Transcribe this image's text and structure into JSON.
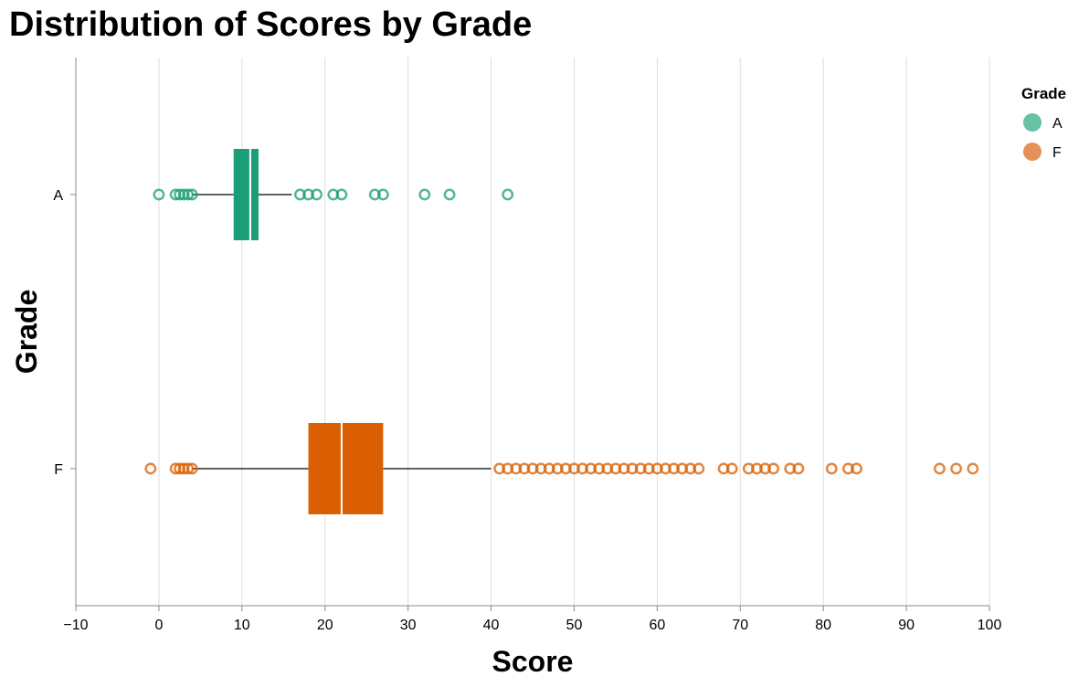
{
  "chart_data": {
    "type": "boxplot",
    "title": "Distribution of Scores by Grade",
    "xlabel": "Score",
    "ylabel": "Grade",
    "xlim": [
      -10,
      100
    ],
    "x_ticks": [
      -10,
      0,
      10,
      20,
      30,
      40,
      50,
      60,
      70,
      80,
      90,
      100
    ],
    "categories": [
      "A",
      "F"
    ],
    "grid": true,
    "legend": {
      "title": "Grade",
      "placement": "top-right"
    },
    "series": [
      {
        "name": "A",
        "color": "#1b9e77",
        "legend_color": "#66c2a5",
        "whisker_low": 4,
        "q1": 9,
        "median": 11,
        "q3": 12,
        "whisker_high": 16,
        "outliers": [
          0,
          2,
          2.5,
          3,
          3.5,
          4,
          17,
          18,
          19,
          21,
          22,
          26,
          27,
          32,
          35,
          42
        ]
      },
      {
        "name": "F",
        "color": "#d95f02",
        "legend_color": "#e6905a",
        "whisker_low": 4,
        "q1": 18,
        "median": 22,
        "q3": 27,
        "whisker_high": 40,
        "outliers": [
          -1,
          2,
          2.5,
          3,
          3.5,
          4,
          41,
          42,
          43,
          44,
          45,
          46,
          47,
          48,
          49,
          50,
          51,
          52,
          53,
          54,
          55,
          56,
          57,
          58,
          59,
          60,
          61,
          62,
          63,
          64,
          65,
          68,
          69,
          71,
          72,
          73,
          74,
          76,
          77,
          81,
          83,
          84,
          94,
          96,
          98
        ]
      }
    ]
  }
}
